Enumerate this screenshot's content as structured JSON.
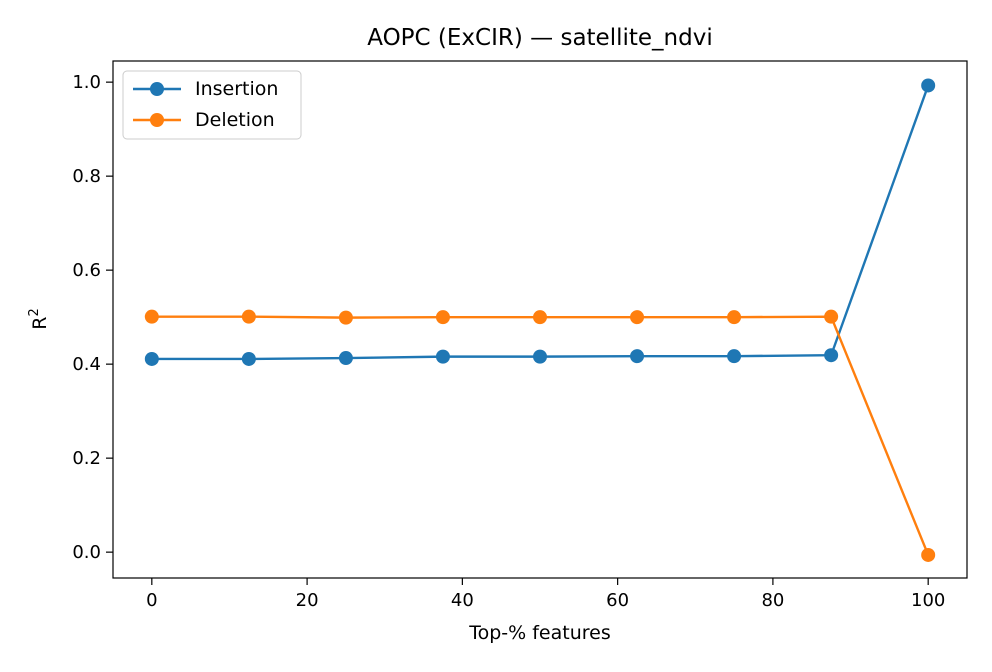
{
  "chart_data": {
    "type": "line",
    "title": "AOPC (ExCIR) — satellite_ndvi",
    "xlabel": "Top-% features",
    "ylabel_base": "R",
    "ylabel_sup": "2",
    "xlim": [
      -5,
      105
    ],
    "ylim": [
      -0.055,
      1.045
    ],
    "x_ticks": [
      0,
      20,
      40,
      60,
      80,
      100
    ],
    "x_tick_labels": [
      "0",
      "20",
      "40",
      "60",
      "80",
      "100"
    ],
    "y_ticks": [
      0.0,
      0.2,
      0.4,
      0.6,
      0.8,
      1.0
    ],
    "y_tick_labels": [
      "0.0",
      "0.2",
      "0.4",
      "0.6",
      "0.8",
      "1.0"
    ],
    "grid": false,
    "legend_position": "top-left",
    "x": [
      0,
      12.5,
      25,
      37.5,
      50,
      62.5,
      75,
      87.5,
      100
    ],
    "series": [
      {
        "name": "Insertion",
        "color": "#1f77b4",
        "values": [
          0.411,
          0.411,
          0.413,
          0.416,
          0.416,
          0.417,
          0.417,
          0.419,
          0.993
        ]
      },
      {
        "name": "Deletion",
        "color": "#ff7f0e",
        "values": [
          0.501,
          0.501,
          0.499,
          0.5,
          0.5,
          0.5,
          0.5,
          0.501,
          -0.006
        ]
      }
    ]
  }
}
